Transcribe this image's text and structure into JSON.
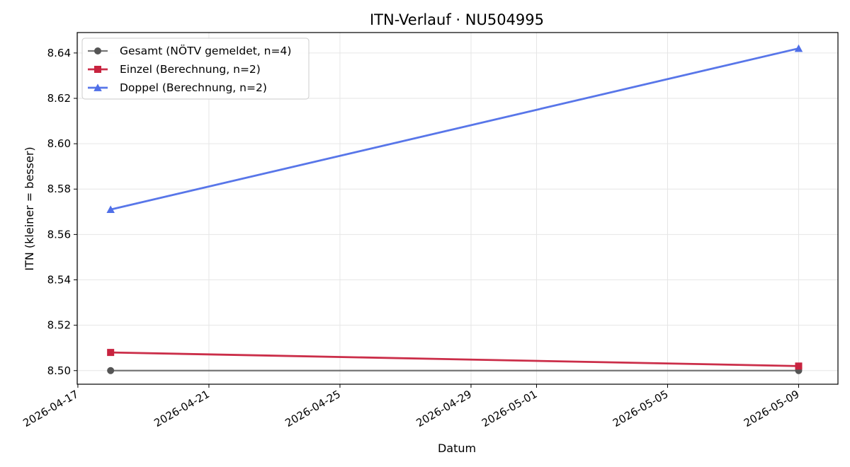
{
  "chart_data": {
    "type": "line",
    "title": "ITN-Verlauf · NU504995",
    "xlabel": "Datum",
    "ylabel": "ITN  (kleiner = besser)",
    "x_range": [
      "2026-04-17",
      "2026-05-10"
    ],
    "y_range": [
      8.494,
      8.649
    ],
    "grid": true,
    "legend_position": "top-left",
    "x_tick_labels": [
      "2026-04-17",
      "2026-04-21",
      "2026-04-25",
      "2026-04-29",
      "2026-05-01",
      "2026-05-05",
      "2026-05-09"
    ],
    "y_tick_labels": [
      "8.50",
      "8.52",
      "8.54",
      "8.56",
      "8.58",
      "8.60",
      "8.62",
      "8.64"
    ],
    "series": [
      {
        "name": "Gesamt (NÖTV gemeldet, n=4)",
        "color": "#555555",
        "marker": "circle",
        "x": [
          "2026-04-18",
          "2026-05-09"
        ],
        "y": [
          8.5,
          8.5
        ]
      },
      {
        "name": "Einzel (Berechnung, n=2)",
        "color": "#c8233f",
        "marker": "square",
        "x": [
          "2026-04-18",
          "2026-05-09"
        ],
        "y": [
          8.508,
          8.502
        ]
      },
      {
        "name": "Doppel (Berechnung, n=2)",
        "color": "#4f6fe8",
        "marker": "triangle",
        "x": [
          "2026-04-18",
          "2026-05-09"
        ],
        "y": [
          8.571,
          8.642
        ]
      }
    ]
  }
}
